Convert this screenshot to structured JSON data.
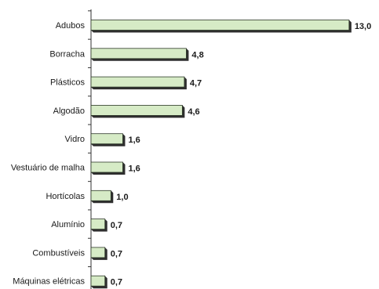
{
  "chart_data": {
    "type": "bar",
    "orientation": "horizontal",
    "categories": [
      "Adubos",
      "Borracha",
      "Plásticos",
      "Algodão",
      "Vidro",
      "Vestuário de malha",
      "Hortícolas",
      "Alumínio",
      "Combustíveis",
      "Máquinas elétricas"
    ],
    "values": [
      13.0,
      4.8,
      4.7,
      4.6,
      1.6,
      1.6,
      1.0,
      0.7,
      0.7,
      0.7
    ],
    "value_labels": [
      "13,0",
      "4,8",
      "4,7",
      "4,6",
      "1,6",
      "1,6",
      "1,0",
      "0,7",
      "0,7",
      "0,7"
    ],
    "title": "",
    "xlabel": "",
    "ylabel": "",
    "xlim": [
      0,
      13.6
    ],
    "grid": false,
    "legend": "none",
    "colors": {
      "bar_fill": "#d6ebc6",
      "bar_stroke": "#2f3a2a",
      "bar_shadow": "#2e2e2e",
      "axis": "#333333"
    }
  }
}
